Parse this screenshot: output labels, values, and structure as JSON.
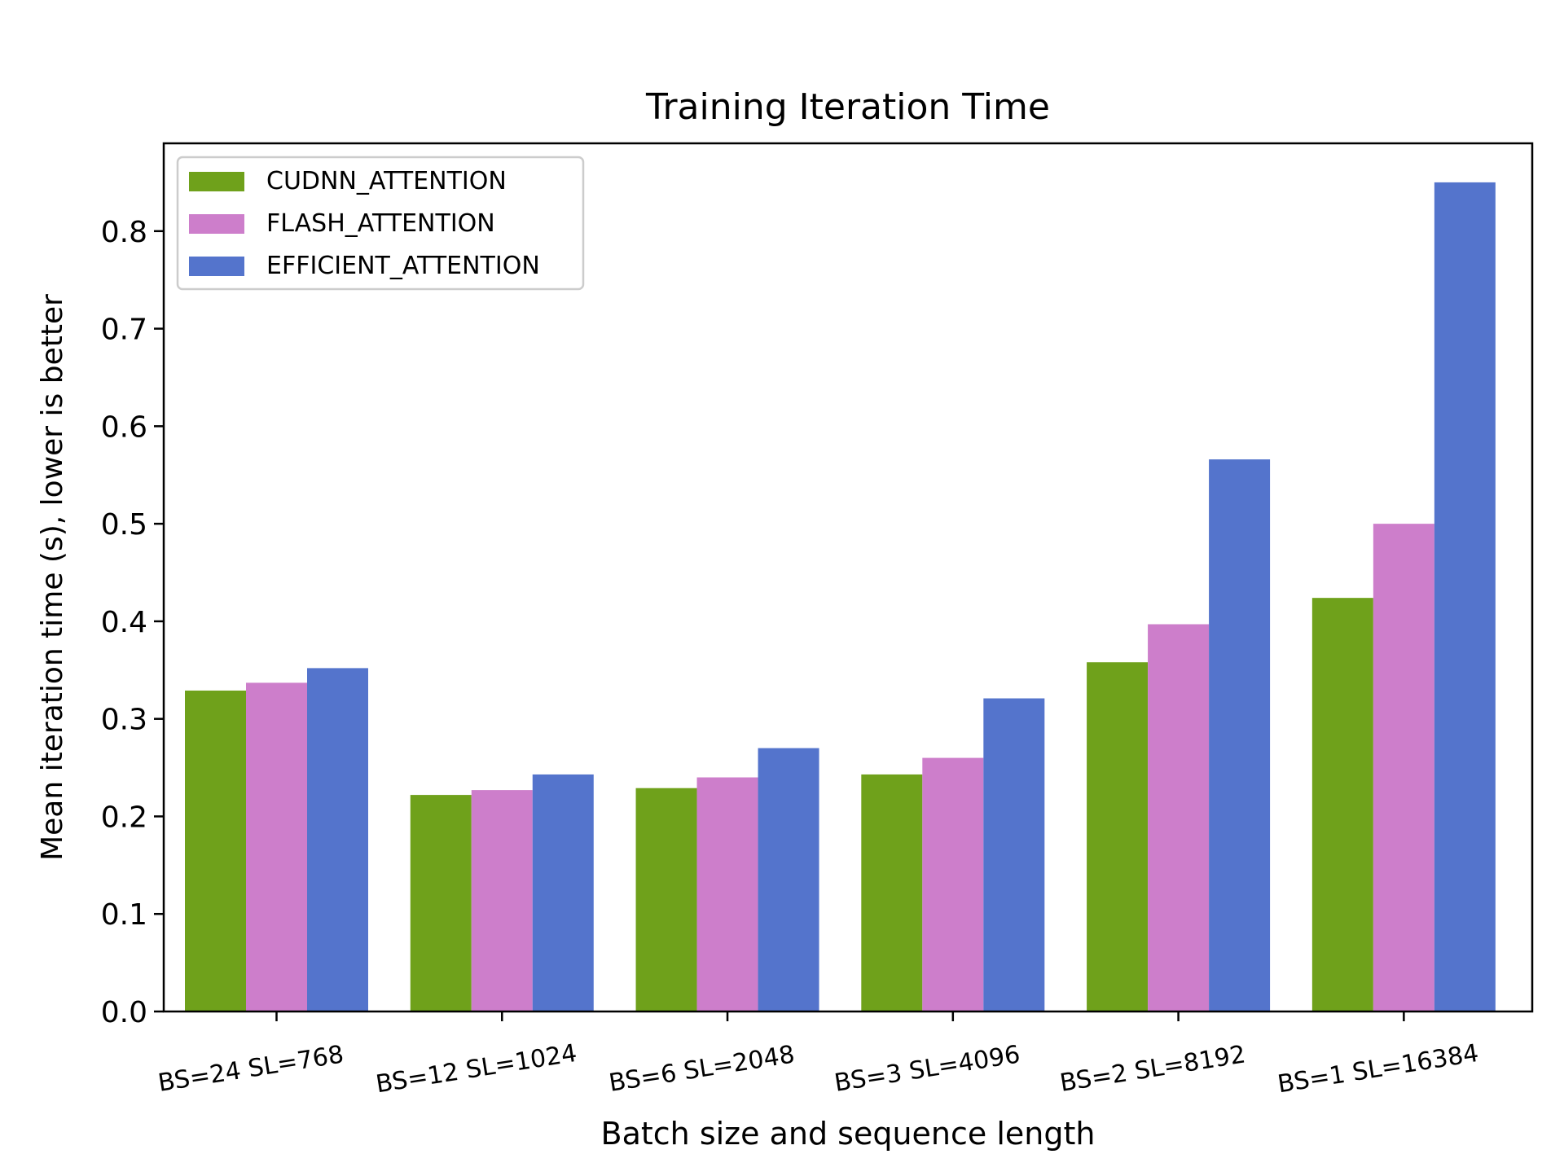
{
  "chart_data": {
    "type": "bar",
    "title": "Training Iteration Time",
    "xlabel": "Batch size and sequence length",
    "ylabel": "Mean iteration time (s), lower is better",
    "categories": [
      "BS=24 SL=768",
      "BS=12 SL=1024",
      "BS=6 SL=2048",
      "BS=3 SL=4096",
      "BS=2 SL=8192",
      "BS=1 SL=16384"
    ],
    "series": [
      {
        "name": "CUDNN_ATTENTION",
        "color": "#6fa11b",
        "values": [
          0.329,
          0.222,
          0.229,
          0.243,
          0.358,
          0.424
        ]
      },
      {
        "name": "FLASH_ATTENTION",
        "color": "#cd7ecb",
        "values": [
          0.337,
          0.227,
          0.24,
          0.26,
          0.397,
          0.5
        ]
      },
      {
        "name": "EFFICIENT_ATTENTION",
        "color": "#5474cc",
        "values": [
          0.352,
          0.243,
          0.27,
          0.321,
          0.566,
          0.85
        ]
      }
    ],
    "ylim": [
      0,
      0.89
    ],
    "yticks": [
      "0.0",
      "0.1",
      "0.2",
      "0.3",
      "0.4",
      "0.5",
      "0.6",
      "0.7",
      "0.8"
    ],
    "legend_position": "upper-left",
    "grid": false
  }
}
